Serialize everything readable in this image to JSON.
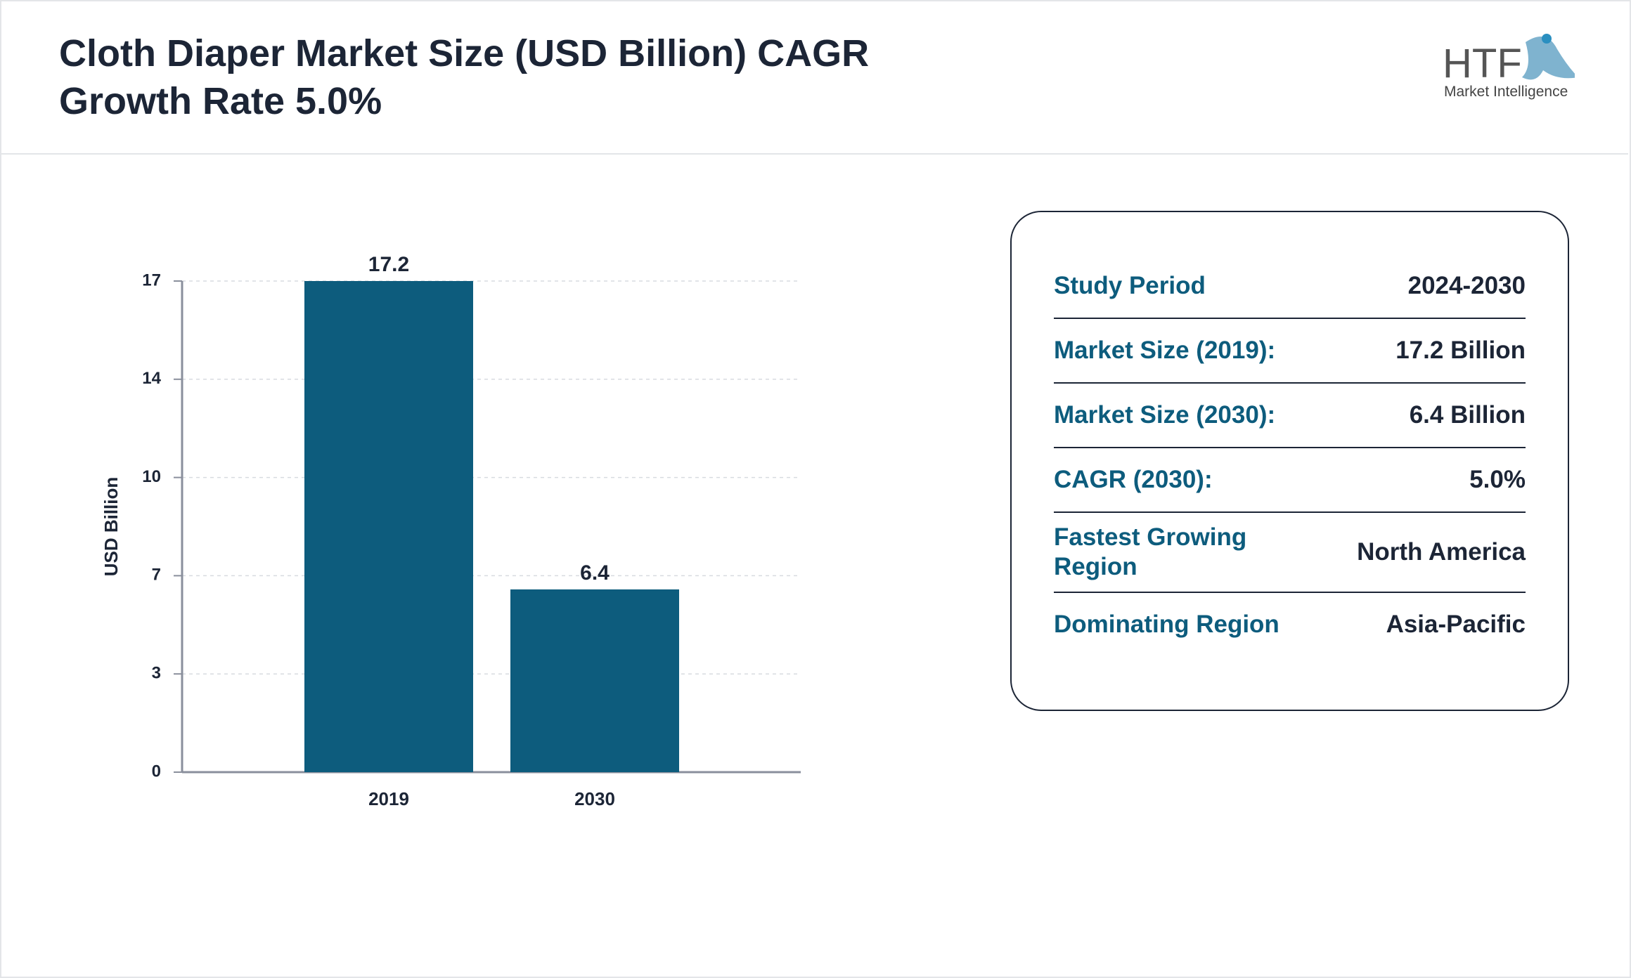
{
  "header": {
    "title": "Cloth Diaper Market Size (USD Billion) CAGR Growth Rate 5.0%"
  },
  "logo": {
    "mark": "HTF",
    "text": "Market Intelligence"
  },
  "chart_data": {
    "type": "bar",
    "y_label": "USD Billion",
    "categories": [
      "2019",
      "2030"
    ],
    "values": [
      17.2,
      6.4
    ],
    "color": "#0d5c7d",
    "ylim": [
      0,
      17.2
    ],
    "yticks": [
      0,
      {
        "value": 3.44,
        "label": "3"
      },
      {
        "value": 6.88,
        "label": "7"
      },
      {
        "value": 10.32,
        "label": "10"
      },
      {
        "value": 13.76,
        "label": "14"
      },
      {
        "value": 17.2,
        "label": "17"
      }
    ],
    "grid": true
  },
  "summary": {
    "rows": [
      {
        "label": "Study Period",
        "value": "2024-2030"
      },
      {
        "label": "Market Size (2019):",
        "value": "17.2 Billion"
      },
      {
        "label": "Market Size (2030):",
        "value": "6.4 Billion"
      },
      {
        "label": "CAGR (2030):",
        "value": "5.0%"
      },
      {
        "label": "Fastest Growing Region",
        "value": "North America"
      },
      {
        "label": "Dominating Region",
        "value": "Asia-Pacific"
      }
    ]
  }
}
